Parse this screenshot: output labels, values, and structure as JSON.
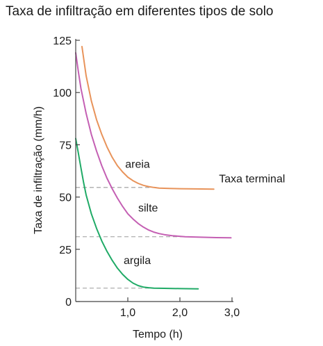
{
  "chart_data": {
    "type": "line",
    "title": "Taxa de infiltração em diferentes tipos de solo",
    "xlabel": "Tempo (h)",
    "ylabel": "Taxa de infiltração (mm/h)",
    "xlim": [
      0,
      3.0
    ],
    "ylim": [
      0,
      125
    ],
    "x_ticks": [
      1.0,
      2.0,
      3.0
    ],
    "x_tick_labels": [
      "1,0",
      "2,0",
      "3,0"
    ],
    "y_ticks": [
      0,
      25,
      50,
      75,
      100,
      125
    ],
    "y_tick_labels": [
      "0",
      "25",
      "50",
      "75",
      "100",
      "125"
    ],
    "grid": false,
    "series": [
      {
        "name": "areia",
        "color": "#e8935a",
        "points": [
          [
            0.12,
            122
          ],
          [
            0.2,
            108
          ],
          [
            0.3,
            96
          ],
          [
            0.4,
            87
          ],
          [
            0.5,
            80
          ],
          [
            0.6,
            74
          ],
          [
            0.7,
            69
          ],
          [
            0.8,
            65
          ],
          [
            0.9,
            62
          ],
          [
            1.0,
            59.5
          ],
          [
            1.1,
            57.8
          ],
          [
            1.2,
            56.5
          ],
          [
            1.3,
            55.6
          ],
          [
            1.4,
            55.0
          ],
          [
            1.5,
            54.6
          ],
          [
            1.6,
            54.3
          ],
          [
            1.8,
            54.1
          ],
          [
            2.0,
            54.0
          ],
          [
            2.3,
            53.9
          ],
          [
            2.65,
            53.8
          ]
        ]
      },
      {
        "name": "silte",
        "color": "#c45fb3",
        "points": [
          [
            0.0,
            119
          ],
          [
            0.05,
            110
          ],
          [
            0.1,
            102
          ],
          [
            0.2,
            90
          ],
          [
            0.3,
            80
          ],
          [
            0.4,
            72
          ],
          [
            0.5,
            65
          ],
          [
            0.6,
            59
          ],
          [
            0.7,
            54
          ],
          [
            0.8,
            49.5
          ],
          [
            0.9,
            45.5
          ],
          [
            1.0,
            42
          ],
          [
            1.1,
            39.5
          ],
          [
            1.2,
            37.3
          ],
          [
            1.3,
            35.6
          ],
          [
            1.4,
            34.2
          ],
          [
            1.5,
            33.2
          ],
          [
            1.6,
            32.5
          ],
          [
            1.7,
            32.0
          ],
          [
            1.85,
            31.5
          ],
          [
            2.1,
            31.0
          ],
          [
            2.4,
            30.8
          ],
          [
            2.7,
            30.6
          ],
          [
            2.98,
            30.5
          ]
        ]
      },
      {
        "name": "argila",
        "color": "#1faa66",
        "points": [
          [
            0.0,
            78
          ],
          [
            0.05,
            71
          ],
          [
            0.1,
            64
          ],
          [
            0.15,
            57
          ],
          [
            0.2,
            51
          ],
          [
            0.3,
            42
          ],
          [
            0.4,
            35
          ],
          [
            0.5,
            29
          ],
          [
            0.6,
            24
          ],
          [
            0.7,
            19.7
          ],
          [
            0.8,
            16
          ],
          [
            0.9,
            13
          ],
          [
            1.0,
            10.6
          ],
          [
            1.1,
            8.8
          ],
          [
            1.2,
            7.6
          ],
          [
            1.3,
            6.9
          ],
          [
            1.4,
            6.6
          ],
          [
            1.5,
            6.4
          ],
          [
            1.7,
            6.3
          ],
          [
            2.0,
            6.2
          ],
          [
            2.35,
            6.1
          ]
        ]
      }
    ],
    "reference_lines": [
      {
        "y": 54.6,
        "x_end": 1.6
      },
      {
        "y": 31.0,
        "x_end": 2.1
      },
      {
        "y": 6.4,
        "x_end": 1.5
      }
    ],
    "series_labels": [
      {
        "text": "areia",
        "x": 0.95,
        "y": 64
      },
      {
        "text": "silte",
        "x": 1.2,
        "y": 43
      },
      {
        "text": "argila",
        "x": 0.92,
        "y": 18
      }
    ],
    "annotations": [
      {
        "text": "Taxa terminal",
        "x": 2.75,
        "y": 57
      }
    ]
  }
}
